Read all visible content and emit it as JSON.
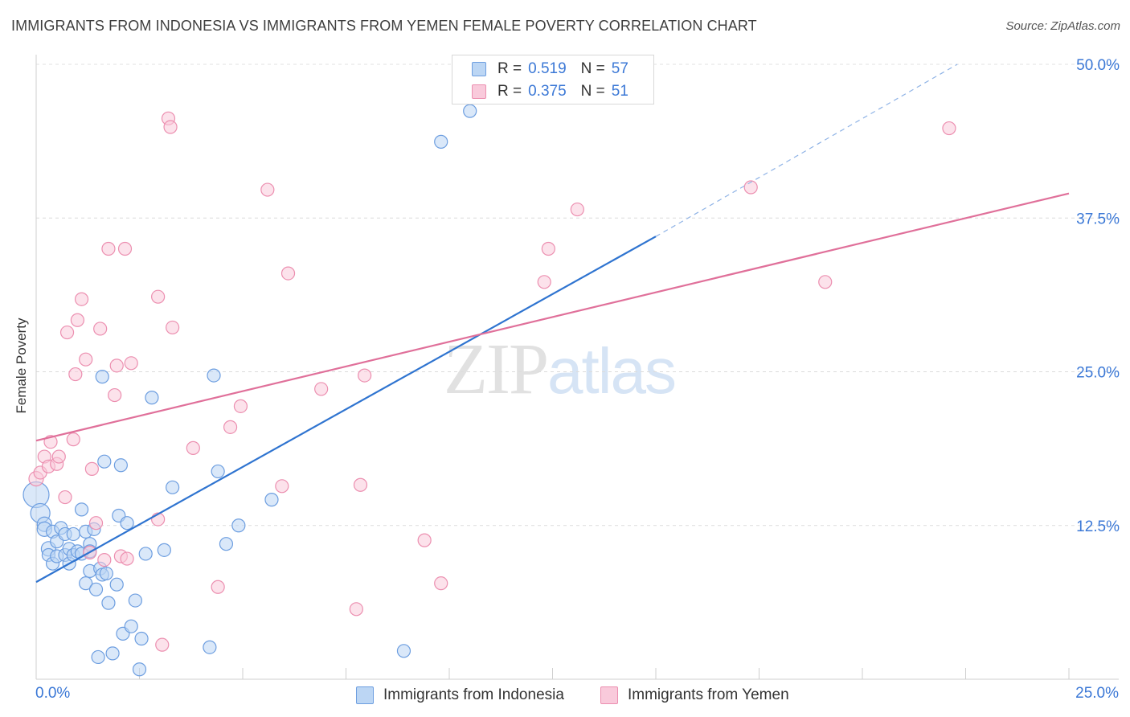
{
  "title": "IMMIGRANTS FROM INDONESIA VS IMMIGRANTS FROM YEMEN FEMALE POVERTY CORRELATION CHART",
  "source": "Source: ZipAtlas.com",
  "watermark": {
    "zip": "ZIP",
    "atlas": "atlas"
  },
  "legend": {
    "r_label": "R =",
    "n_label": "N =",
    "rows": [
      {
        "name": "Immigrants from Indonesia",
        "r": "0.519",
        "n": "57",
        "color": "#6d9ee0"
      },
      {
        "name": "Immigrants from Yemen",
        "r": "0.375",
        "n": "51",
        "color": "#ec8fb0"
      }
    ]
  },
  "chart_data": {
    "type": "scatter",
    "title": "IMMIGRANTS FROM INDONESIA VS IMMIGRANTS FROM YEMEN FEMALE POVERTY CORRELATION CHART",
    "xlabel": "",
    "ylabel": "Female Poverty",
    "xlim": [
      0,
      25
    ],
    "ylim": [
      0,
      50
    ],
    "x_tick_labels": [
      "0.0%",
      "25.0%"
    ],
    "y_ticks": [
      12.5,
      25.0,
      37.5,
      50.0
    ],
    "y_tick_labels": [
      "12.5%",
      "25.0%",
      "37.5%",
      "50.0%"
    ],
    "grid": true,
    "series": [
      {
        "name": "Immigrants from Indonesia",
        "color": "#6d9ee0",
        "fill": "#bcd6f4",
        "r": 0.519,
        "n": 57,
        "trend": {
          "x0": 0,
          "y0": 7.9,
          "x1": 15.0,
          "y1": 36.0,
          "dash_to_x": 22.3,
          "dash_to_y": 50.0
        },
        "points": [
          [
            0.0,
            15.0,
            16
          ],
          [
            0.1,
            13.5,
            12
          ],
          [
            0.2,
            12.6,
            9
          ],
          [
            0.2,
            12.2,
            9
          ],
          [
            0.3,
            10.6,
            9
          ],
          [
            0.3,
            10.1,
            8
          ],
          [
            0.4,
            12.0,
            8
          ],
          [
            0.4,
            9.4,
            8
          ],
          [
            0.5,
            10.0,
            8
          ],
          [
            0.5,
            11.2,
            8
          ],
          [
            0.6,
            12.3,
            8
          ],
          [
            0.7,
            11.8,
            8
          ],
          [
            0.7,
            10.1,
            8
          ],
          [
            0.8,
            9.4,
            8
          ],
          [
            0.8,
            10.6,
            8
          ],
          [
            0.9,
            11.8,
            8
          ],
          [
            0.9,
            10.1,
            8
          ],
          [
            1.0,
            10.4,
            8
          ],
          [
            1.1,
            10.2,
            8
          ],
          [
            1.1,
            13.8,
            8
          ],
          [
            1.2,
            7.8,
            8
          ],
          [
            1.2,
            12.0,
            8
          ],
          [
            1.3,
            11.0,
            8
          ],
          [
            1.3,
            10.4,
            8
          ],
          [
            1.3,
            8.8,
            8
          ],
          [
            1.4,
            12.2,
            8
          ],
          [
            1.45,
            7.3,
            8
          ],
          [
            1.5,
            1.8,
            8
          ],
          [
            1.55,
            9.0,
            8
          ],
          [
            1.6,
            8.5,
            8
          ],
          [
            1.6,
            24.6,
            8
          ],
          [
            1.65,
            17.7,
            8
          ],
          [
            1.7,
            8.6,
            8
          ],
          [
            1.75,
            6.2,
            8
          ],
          [
            1.85,
            2.1,
            8
          ],
          [
            1.95,
            7.7,
            8
          ],
          [
            2.0,
            13.3,
            8
          ],
          [
            2.05,
            17.4,
            8
          ],
          [
            2.1,
            3.7,
            8
          ],
          [
            2.2,
            12.7,
            8
          ],
          [
            2.3,
            4.3,
            8
          ],
          [
            2.4,
            6.4,
            8
          ],
          [
            2.5,
            0.8,
            8
          ],
          [
            2.55,
            3.3,
            8
          ],
          [
            2.65,
            10.2,
            8
          ],
          [
            2.8,
            22.9,
            8
          ],
          [
            3.1,
            10.5,
            8
          ],
          [
            3.3,
            15.6,
            8
          ],
          [
            4.2,
            2.6,
            8
          ],
          [
            4.3,
            24.7,
            8
          ],
          [
            4.4,
            16.9,
            8
          ],
          [
            4.6,
            11.0,
            8
          ],
          [
            4.9,
            12.5,
            8
          ],
          [
            5.7,
            14.6,
            8
          ],
          [
            8.9,
            2.3,
            8
          ],
          [
            9.8,
            43.7,
            8
          ],
          [
            10.5,
            46.2,
            8
          ]
        ]
      },
      {
        "name": "Immigrants from Yemen",
        "color": "#ec8fb0",
        "fill": "#f9cadb",
        "r": 0.375,
        "n": 51,
        "trend": {
          "x0": 0,
          "y0": 19.4,
          "x1": 25.0,
          "y1": 39.5
        },
        "points": [
          [
            0.0,
            16.3,
            9
          ],
          [
            0.1,
            16.8,
            8
          ],
          [
            0.2,
            18.1,
            8
          ],
          [
            0.3,
            17.3,
            8
          ],
          [
            0.35,
            19.3,
            8
          ],
          [
            0.5,
            17.5,
            8
          ],
          [
            0.55,
            18.1,
            8
          ],
          [
            0.7,
            14.8,
            8
          ],
          [
            0.75,
            28.2,
            8
          ],
          [
            0.9,
            19.5,
            8
          ],
          [
            0.95,
            24.8,
            8
          ],
          [
            1.0,
            29.2,
            8
          ],
          [
            1.1,
            30.9,
            8
          ],
          [
            1.2,
            26.0,
            8
          ],
          [
            1.3,
            10.3,
            8
          ],
          [
            1.35,
            17.1,
            8
          ],
          [
            1.45,
            12.7,
            8
          ],
          [
            1.55,
            28.5,
            8
          ],
          [
            1.65,
            9.7,
            8
          ],
          [
            1.75,
            35.0,
            8
          ],
          [
            1.9,
            23.1,
            8
          ],
          [
            1.95,
            25.5,
            8
          ],
          [
            2.05,
            10.0,
            8
          ],
          [
            2.15,
            35.0,
            8
          ],
          [
            2.2,
            9.8,
            8
          ],
          [
            2.3,
            25.7,
            8
          ],
          [
            2.95,
            13.0,
            8
          ],
          [
            2.95,
            31.1,
            8
          ],
          [
            3.05,
            2.8,
            8
          ],
          [
            3.2,
            45.6,
            8
          ],
          [
            3.25,
            44.9,
            8
          ],
          [
            3.3,
            28.6,
            8
          ],
          [
            3.8,
            18.8,
            8
          ],
          [
            4.4,
            7.5,
            8
          ],
          [
            4.7,
            20.5,
            8
          ],
          [
            4.95,
            22.2,
            8
          ],
          [
            5.6,
            39.8,
            8
          ],
          [
            5.95,
            15.7,
            8
          ],
          [
            6.1,
            33.0,
            8
          ],
          [
            6.9,
            23.6,
            8
          ],
          [
            7.75,
            5.7,
            8
          ],
          [
            7.85,
            15.8,
            8
          ],
          [
            7.95,
            24.7,
            8
          ],
          [
            9.4,
            11.3,
            8
          ],
          [
            9.8,
            7.8,
            8
          ],
          [
            12.3,
            32.3,
            8
          ],
          [
            12.4,
            35.0,
            8
          ],
          [
            13.1,
            38.2,
            8
          ],
          [
            17.3,
            40.0,
            8
          ],
          [
            19.1,
            32.3,
            8
          ],
          [
            22.1,
            44.8,
            8
          ]
        ]
      }
    ]
  }
}
